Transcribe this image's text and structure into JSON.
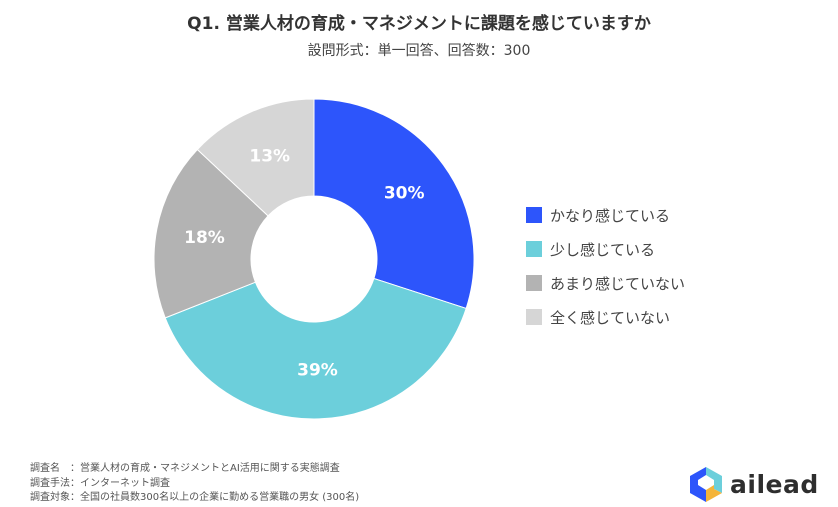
{
  "header": {
    "title": "Q1. 営業人材の育成・マネジメントに課題を感じていますか",
    "subtitle": "設問形式：単一回答、回答数：300"
  },
  "chart_data": {
    "type": "pie",
    "variant": "donut",
    "categories": [
      "かなり感じている",
      "少し感じている",
      "あまり感じていない",
      "全く感じていない"
    ],
    "values": [
      30,
      39,
      18,
      13
    ],
    "labels": [
      "30%",
      "39%",
      "18%",
      "13%"
    ],
    "colors": [
      "#2d55fb",
      "#6ccfdb",
      "#b3b3b3",
      "#d6d6d6"
    ],
    "legend_position": "right"
  },
  "legend": {
    "items": [
      {
        "label": "かなり感じている",
        "color": "#2d55fb"
      },
      {
        "label": "少し感じている",
        "color": "#6ccfdb"
      },
      {
        "label": "あまり感じていない",
        "color": "#b3b3b3"
      },
      {
        "label": "全く感じていない",
        "color": "#d6d6d6"
      }
    ]
  },
  "footnote": {
    "line1": "調査名　：営業人材の育成・マネジメントとAI活用に関する実態調査",
    "line2": "調査手法：インターネット調査",
    "line3": "調査対象：全国の社員数300名以上の企業に勤める営業職の男女 (300名)"
  },
  "brand": {
    "name": "ailead",
    "icon": "ailead-cube-icon",
    "icon_colors": [
      "#2d55fb",
      "#6ccfdb",
      "#f4b43a"
    ]
  }
}
